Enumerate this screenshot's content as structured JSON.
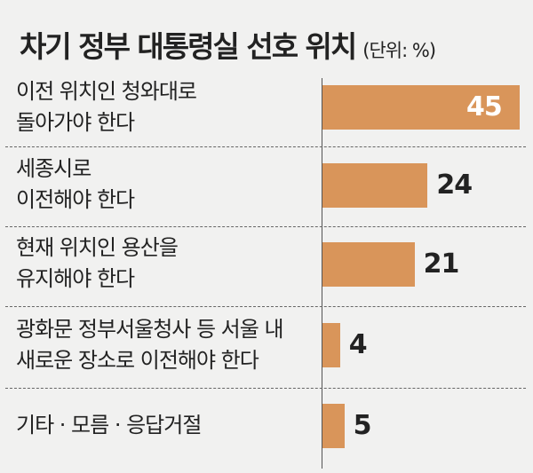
{
  "chart_data": {
    "type": "bar",
    "orientation": "horizontal",
    "title": "차기 정부 대통령실 선호 위치",
    "unit_label": "(단위: %)",
    "categories": [
      "이전 위치인 청와대로\n돌아가야 한다",
      "세종시로\n이전해야 한다",
      "현재 위치인 용산을\n유지해야 한다",
      "광화문 정부서울청사 등 서울 내\n새로운 장소로 이전해야 한다",
      "기타 · 모름 · 응답거절"
    ],
    "values": [
      45,
      24,
      21,
      4,
      5
    ],
    "data_labels": [
      "45",
      "24",
      "21",
      "4",
      "5"
    ],
    "bar_color": "#d9955a",
    "xlim": [
      0,
      45
    ],
    "grid": false,
    "legend": "none"
  }
}
